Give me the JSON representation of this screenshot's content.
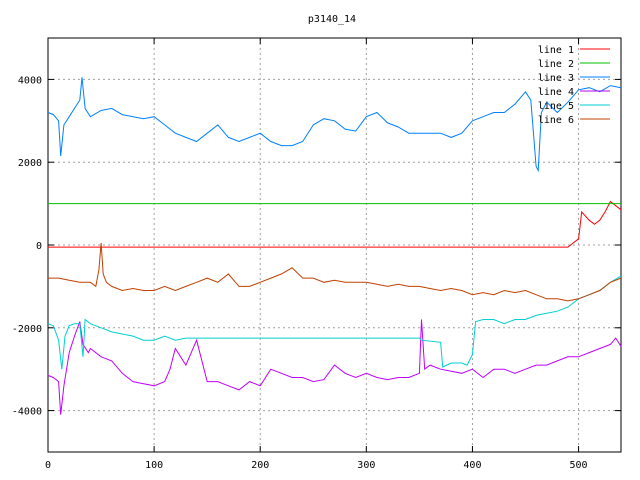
{
  "chart_data": {
    "type": "line",
    "title": "p3140_14",
    "xlabel": "",
    "ylabel": "",
    "xlim": [
      0,
      540
    ],
    "ylim": [
      -5000,
      5000
    ],
    "x_ticks": [
      0,
      100,
      200,
      300,
      400,
      500
    ],
    "x_tick_labels": [
      "0",
      "100",
      "200",
      "300",
      "400",
      "500"
    ],
    "y_ticks": [
      -4000,
      -2000,
      0,
      2000,
      4000
    ],
    "y_tick_labels": [
      "-4000",
      "-2000",
      "0",
      "2000",
      "4000"
    ],
    "grid": true,
    "legend_position": "top-right",
    "series": [
      {
        "name": "line 1",
        "color": "#ff0000",
        "x": [
          0,
          100,
          200,
          300,
          400,
          490,
          495,
          500,
          503,
          510,
          515,
          520,
          525,
          530,
          535,
          540
        ],
        "y": [
          -50,
          -50,
          -50,
          -50,
          -50,
          -50,
          50,
          150,
          800,
          600,
          500,
          600,
          800,
          1050,
          950,
          850
        ]
      },
      {
        "name": "line 2",
        "color": "#00c000",
        "x": [
          0,
          540
        ],
        "y": [
          1000,
          1000
        ]
      },
      {
        "name": "line 3",
        "color": "#0080ff",
        "x": [
          0,
          5,
          10,
          12,
          15,
          20,
          25,
          30,
          32,
          35,
          40,
          50,
          60,
          70,
          80,
          90,
          100,
          110,
          120,
          130,
          140,
          150,
          160,
          170,
          180,
          190,
          200,
          210,
          220,
          230,
          240,
          250,
          260,
          270,
          280,
          290,
          300,
          310,
          320,
          330,
          340,
          350,
          360,
          370,
          380,
          390,
          400,
          410,
          420,
          430,
          440,
          450,
          455,
          460,
          462,
          465,
          470,
          480,
          490,
          500,
          510,
          520,
          530,
          540
        ],
        "y": [
          3200,
          3150,
          3000,
          2150,
          2900,
          3100,
          3300,
          3500,
          4050,
          3300,
          3100,
          3250,
          3300,
          3150,
          3100,
          3050,
          3100,
          2900,
          2700,
          2600,
          2500,
          2700,
          2900,
          2600,
          2500,
          2600,
          2700,
          2500,
          2400,
          2400,
          2500,
          2900,
          3050,
          3000,
          2800,
          2750,
          3100,
          3200,
          2950,
          2850,
          2700,
          2700,
          2700,
          2700,
          2600,
          2700,
          3000,
          3100,
          3200,
          3200,
          3400,
          3700,
          3500,
          1900,
          1800,
          3200,
          3450,
          3200,
          3450,
          3750,
          3800,
          3700,
          3850,
          3800
        ]
      },
      {
        "name": "line 4",
        "color": "#c000ff",
        "x": [
          0,
          5,
          10,
          12,
          15,
          20,
          25,
          30,
          33,
          38,
          40,
          50,
          60,
          70,
          80,
          90,
          100,
          110,
          115,
          120,
          125,
          130,
          140,
          145,
          150,
          160,
          170,
          180,
          190,
          200,
          210,
          220,
          230,
          240,
          250,
          260,
          270,
          280,
          290,
          300,
          310,
          320,
          330,
          340,
          350,
          352,
          355,
          360,
          370,
          380,
          390,
          400,
          410,
          420,
          430,
          440,
          450,
          460,
          470,
          480,
          490,
          500,
          510,
          520,
          530,
          535,
          540
        ],
        "y": [
          -3150,
          -3200,
          -3300,
          -4100,
          -3400,
          -2600,
          -2200,
          -1850,
          -2400,
          -2600,
          -2500,
          -2700,
          -2800,
          -3100,
          -3300,
          -3350,
          -3400,
          -3300,
          -3000,
          -2500,
          -2700,
          -2900,
          -2300,
          -2800,
          -3300,
          -3300,
          -3400,
          -3500,
          -3300,
          -3400,
          -3000,
          -3100,
          -3200,
          -3200,
          -3300,
          -3250,
          -2900,
          -3100,
          -3200,
          -3100,
          -3200,
          -3250,
          -3200,
          -3200,
          -3100,
          -1800,
          -3000,
          -2900,
          -3000,
          -3050,
          -3100,
          -3000,
          -3200,
          -3000,
          -3000,
          -3100,
          -3000,
          -2900,
          -2900,
          -2800,
          -2700,
          -2700,
          -2600,
          -2500,
          -2400,
          -2250,
          -2450
        ]
      },
      {
        "name": "line 5",
        "color": "#00d0d0",
        "x": [
          0,
          5,
          10,
          13,
          16,
          20,
          25,
          30,
          33,
          35,
          40,
          50,
          60,
          70,
          80,
          90,
          100,
          110,
          120,
          130,
          200,
          300,
          350,
          352,
          370,
          372,
          380,
          390,
          395,
          400,
          403,
          410,
          420,
          430,
          440,
          450,
          460,
          470,
          480,
          490,
          500,
          510,
          520,
          530,
          540
        ],
        "y": [
          -1900,
          -1950,
          -2300,
          -3000,
          -2200,
          -1950,
          -1900,
          -1900,
          -2700,
          -1800,
          -1900,
          -2000,
          -2100,
          -2150,
          -2200,
          -2300,
          -2300,
          -2200,
          -2300,
          -2250,
          -2250,
          -2250,
          -2250,
          -2300,
          -2350,
          -2950,
          -2850,
          -2850,
          -2900,
          -2650,
          -1850,
          -1800,
          -1800,
          -1900,
          -1800,
          -1800,
          -1700,
          -1650,
          -1600,
          -1500,
          -1300,
          -1200,
          -1100,
          -900,
          -750
        ]
      },
      {
        "name": "line 6",
        "color": "#c04000",
        "x": [
          0,
          10,
          20,
          30,
          40,
          45,
          48,
          50,
          52,
          55,
          60,
          70,
          80,
          90,
          100,
          110,
          120,
          130,
          140,
          150,
          160,
          170,
          180,
          190,
          200,
          210,
          220,
          230,
          240,
          250,
          260,
          270,
          280,
          290,
          300,
          310,
          320,
          330,
          340,
          350,
          360,
          370,
          380,
          390,
          400,
          410,
          420,
          430,
          440,
          450,
          460,
          470,
          480,
          490,
          500,
          510,
          520,
          530,
          540
        ],
        "y": [
          -800,
          -800,
          -850,
          -900,
          -900,
          -1000,
          -600,
          50,
          -700,
          -900,
          -1000,
          -1100,
          -1050,
          -1100,
          -1100,
          -1000,
          -1100,
          -1000,
          -900,
          -800,
          -900,
          -700,
          -1000,
          -1000,
          -900,
          -800,
          -700,
          -550,
          -800,
          -800,
          -900,
          -850,
          -900,
          -900,
          -900,
          -950,
          -1000,
          -950,
          -1000,
          -1000,
          -1050,
          -1100,
          -1050,
          -1100,
          -1200,
          -1150,
          -1200,
          -1100,
          -1150,
          -1100,
          -1200,
          -1300,
          -1300,
          -1350,
          -1300,
          -1200,
          -1100,
          -900,
          -800
        ]
      }
    ]
  }
}
